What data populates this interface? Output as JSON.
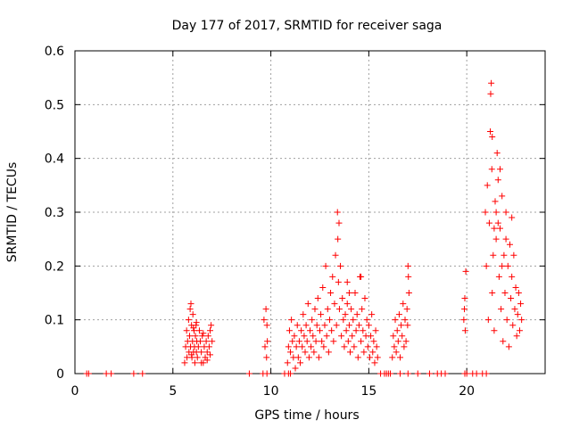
{
  "chart_data": {
    "type": "scatter",
    "title": "Day 177 of 2017, SRMTID for receiver saga",
    "xlabel": "GPS time / hours",
    "ylabel": "SRMTID / TECUs",
    "xlim": [
      0,
      24
    ],
    "ylim": [
      0,
      0.6
    ],
    "xticks": [
      0,
      5,
      10,
      15,
      20
    ],
    "yticks": [
      0,
      0.1,
      0.2,
      0.3,
      0.4,
      0.5,
      0.6
    ],
    "grid": true,
    "marker": "+",
    "color": "#ff0000",
    "series": [
      {
        "name": "SRMTID",
        "points": [
          [
            0.6,
            0
          ],
          [
            0.7,
            0
          ],
          [
            1.6,
            0
          ],
          [
            1.85,
            0
          ],
          [
            3.0,
            0
          ],
          [
            3.45,
            0
          ],
          [
            8.9,
            0
          ],
          [
            9.6,
            0
          ],
          [
            9.8,
            0
          ],
          [
            10.7,
            0
          ],
          [
            10.9,
            0
          ],
          [
            11.0,
            0
          ],
          [
            15.6,
            0
          ],
          [
            15.8,
            0
          ],
          [
            15.9,
            0
          ],
          [
            16.0,
            0
          ],
          [
            16.1,
            0
          ],
          [
            16.6,
            0
          ],
          [
            17.0,
            0
          ],
          [
            17.5,
            0
          ],
          [
            18.1,
            0
          ],
          [
            18.5,
            0
          ],
          [
            18.7,
            0
          ],
          [
            18.9,
            0
          ],
          [
            19.9,
            0
          ],
          [
            20.0,
            0
          ],
          [
            20.3,
            0
          ],
          [
            20.5,
            0
          ],
          [
            20.8,
            0
          ],
          [
            21.0,
            0
          ],
          [
            5.6,
            0.02
          ],
          [
            5.65,
            0.05
          ],
          [
            5.7,
            0.08
          ],
          [
            5.72,
            0.03
          ],
          [
            5.75,
            0.06
          ],
          [
            5.8,
            0.1
          ],
          [
            5.82,
            0.04
          ],
          [
            5.85,
            0.07
          ],
          [
            5.88,
            0.12
          ],
          [
            5.9,
            0.05
          ],
          [
            5.92,
            0.13
          ],
          [
            5.95,
            0.09
          ],
          [
            5.97,
            0.03
          ],
          [
            6.0,
            0.06
          ],
          [
            6.02,
            0.11
          ],
          [
            6.05,
            0.04
          ],
          [
            6.08,
            0.08
          ],
          [
            6.1,
            0.05
          ],
          [
            6.12,
            0.02
          ],
          [
            6.15,
            0.07
          ],
          [
            6.18,
            0.09
          ],
          [
            6.2,
            0.04
          ],
          [
            6.22,
            0.06
          ],
          [
            6.25,
            0.03
          ],
          [
            6.3,
            0.05
          ],
          [
            6.35,
            0.08
          ],
          [
            6.4,
            0.06
          ],
          [
            6.45,
            0.04
          ],
          [
            6.5,
            0.07
          ],
          [
            6.55,
            0.02
          ],
          [
            6.6,
            0.05
          ],
          [
            6.65,
            0.03
          ],
          [
            6.7,
            0.06
          ],
          [
            6.75,
            0.04
          ],
          [
            6.8,
            0.07
          ],
          [
            6.85,
            0.05
          ],
          [
            6.9,
            0.08
          ],
          [
            6.95,
            0.09
          ],
          [
            7.0,
            0.06
          ],
          [
            6.45,
            0.02
          ],
          [
            6.55,
            0.075
          ],
          [
            6.75,
            0.025
          ],
          [
            6.9,
            0.035
          ],
          [
            6.2,
            0.095
          ],
          [
            6.05,
            0.085
          ],
          [
            5.95,
            0.035
          ],
          [
            9.65,
            0.1
          ],
          [
            9.7,
            0.05
          ],
          [
            9.75,
            0.12
          ],
          [
            9.8,
            0.09
          ],
          [
            9.78,
            0.03
          ],
          [
            9.82,
            0.06
          ],
          [
            10.85,
            0.02
          ],
          [
            10.9,
            0.05
          ],
          [
            10.95,
            0.08
          ],
          [
            11.0,
            0.04
          ],
          [
            11.05,
            0.1
          ],
          [
            11.1,
            0.06
          ],
          [
            11.15,
            0.03
          ],
          [
            11.2,
            0.07
          ],
          [
            11.25,
            0.01
          ],
          [
            11.3,
            0.05
          ],
          [
            11.35,
            0.09
          ],
          [
            11.4,
            0.03
          ],
          [
            11.45,
            0.06
          ],
          [
            11.5,
            0.02
          ],
          [
            11.55,
            0.08
          ],
          [
            11.6,
            0.05
          ],
          [
            11.65,
            0.11
          ],
          [
            11.7,
            0.07
          ],
          [
            11.75,
            0.04
          ],
          [
            11.8,
            0.09
          ],
          [
            11.85,
            0.06
          ],
          [
            11.9,
            0.13
          ],
          [
            11.95,
            0.03
          ],
          [
            12.0,
            0.08
          ],
          [
            12.05,
            0.05
          ],
          [
            12.1,
            0.1
          ],
          [
            12.15,
            0.07
          ],
          [
            12.2,
            0.04
          ],
          [
            12.25,
            0.12
          ],
          [
            12.3,
            0.06
          ],
          [
            12.35,
            0.09
          ],
          [
            12.4,
            0.14
          ],
          [
            12.45,
            0.03
          ],
          [
            12.5,
            0.08
          ],
          [
            12.55,
            0.11
          ],
          [
            12.6,
            0.06
          ],
          [
            12.65,
            0.16
          ],
          [
            12.7,
            0.05
          ],
          [
            12.75,
            0.09
          ],
          [
            12.8,
            0.2
          ],
          [
            12.85,
            0.07
          ],
          [
            12.9,
            0.12
          ],
          [
            12.95,
            0.04
          ],
          [
            13.0,
            0.1
          ],
          [
            13.05,
            0.15
          ],
          [
            13.1,
            0.08
          ],
          [
            13.15,
            0.18
          ],
          [
            13.2,
            0.06
          ],
          [
            13.25,
            0.13
          ],
          [
            13.3,
            0.22
          ],
          [
            13.35,
            0.09
          ],
          [
            13.4,
            0.3
          ],
          [
            13.42,
            0.25
          ],
          [
            13.45,
            0.17
          ],
          [
            13.48,
            0.28
          ],
          [
            13.5,
            0.12
          ],
          [
            13.55,
            0.2
          ],
          [
            13.6,
            0.07
          ],
          [
            13.65,
            0.14
          ],
          [
            13.7,
            0.1
          ],
          [
            13.75,
            0.05
          ],
          [
            13.8,
            0.11
          ],
          [
            13.85,
            0.08
          ],
          [
            13.9,
            0.13
          ],
          [
            13.95,
            0.06
          ],
          [
            14.0,
            0.09
          ],
          [
            14.05,
            0.04
          ],
          [
            14.1,
            0.12
          ],
          [
            14.15,
            0.07
          ],
          [
            14.2,
            0.1
          ],
          [
            14.25,
            0.05
          ],
          [
            14.3,
            0.15
          ],
          [
            14.35,
            0.08
          ],
          [
            14.4,
            0.11
          ],
          [
            14.45,
            0.03
          ],
          [
            14.5,
            0.09
          ],
          [
            14.55,
            0.18
          ],
          [
            14.6,
            0.06
          ],
          [
            14.65,
            0.12
          ],
          [
            14.7,
            0.08
          ],
          [
            14.75,
            0.04
          ],
          [
            14.8,
            0.14
          ],
          [
            14.85,
            0.07
          ],
          [
            14.9,
            0.1
          ],
          [
            14.95,
            0.05
          ],
          [
            15.0,
            0.09
          ],
          [
            15.05,
            0.03
          ],
          [
            15.1,
            0.07
          ],
          [
            15.15,
            0.11
          ],
          [
            15.2,
            0.04
          ],
          [
            15.25,
            0.06
          ],
          [
            15.3,
            0.02
          ],
          [
            15.35,
            0.08
          ],
          [
            15.4,
            0.05
          ],
          [
            15.45,
            0.03
          ],
          [
            14.0,
            0.15
          ],
          [
            13.9,
            0.17
          ],
          [
            14.6,
            0.18
          ],
          [
            16.2,
            0.03
          ],
          [
            16.25,
            0.07
          ],
          [
            16.3,
            0.05
          ],
          [
            16.35,
            0.1
          ],
          [
            16.4,
            0.04
          ],
          [
            16.45,
            0.08
          ],
          [
            16.5,
            0.06
          ],
          [
            16.55,
            0.11
          ],
          [
            16.6,
            0.03
          ],
          [
            16.65,
            0.09
          ],
          [
            16.7,
            0.07
          ],
          [
            16.75,
            0.13
          ],
          [
            16.8,
            0.05
          ],
          [
            16.85,
            0.1
          ],
          [
            16.9,
            0.06
          ],
          [
            16.95,
            0.12
          ],
          [
            17.0,
            0.2
          ],
          [
            17.05,
            0.15
          ],
          [
            17.02,
            0.18
          ],
          [
            16.98,
            0.09
          ],
          [
            19.85,
            0.1
          ],
          [
            19.9,
            0.14
          ],
          [
            19.95,
            0.19
          ],
          [
            19.92,
            0.08
          ],
          [
            19.88,
            0.12
          ],
          [
            20.95,
            0.3
          ],
          [
            21.0,
            0.2
          ],
          [
            21.05,
            0.35
          ],
          [
            21.1,
            0.1
          ],
          [
            21.15,
            0.28
          ],
          [
            21.2,
            0.45
          ],
          [
            21.22,
            0.52
          ],
          [
            21.25,
            0.54
          ],
          [
            21.28,
            0.38
          ],
          [
            21.3,
            0.15
          ],
          [
            21.35,
            0.22
          ],
          [
            21.4,
            0.08
          ],
          [
            21.45,
            0.32
          ],
          [
            21.5,
            0.25
          ],
          [
            21.55,
            0.41
          ],
          [
            21.6,
            0.36
          ],
          [
            21.65,
            0.18
          ],
          [
            21.7,
            0.27
          ],
          [
            21.75,
            0.12
          ],
          [
            21.8,
            0.33
          ],
          [
            21.85,
            0.06
          ],
          [
            21.9,
            0.22
          ],
          [
            21.95,
            0.15
          ],
          [
            22.0,
            0.3
          ],
          [
            22.05,
            0.1
          ],
          [
            22.1,
            0.2
          ],
          [
            22.15,
            0.05
          ],
          [
            22.2,
            0.24
          ],
          [
            22.25,
            0.14
          ],
          [
            22.3,
            0.18
          ],
          [
            22.35,
            0.09
          ],
          [
            22.4,
            0.22
          ],
          [
            22.45,
            0.12
          ],
          [
            22.5,
            0.16
          ],
          [
            22.55,
            0.07
          ],
          [
            22.6,
            0.11
          ],
          [
            22.65,
            0.15
          ],
          [
            22.7,
            0.08
          ],
          [
            22.75,
            0.13
          ],
          [
            22.8,
            0.1
          ],
          [
            21.5,
            0.3
          ],
          [
            21.6,
            0.28
          ],
          [
            21.7,
            0.38
          ],
          [
            22.0,
            0.25
          ],
          [
            22.3,
            0.29
          ],
          [
            21.3,
            0.44
          ],
          [
            21.4,
            0.27
          ],
          [
            21.8,
            0.2
          ]
        ]
      }
    ]
  }
}
